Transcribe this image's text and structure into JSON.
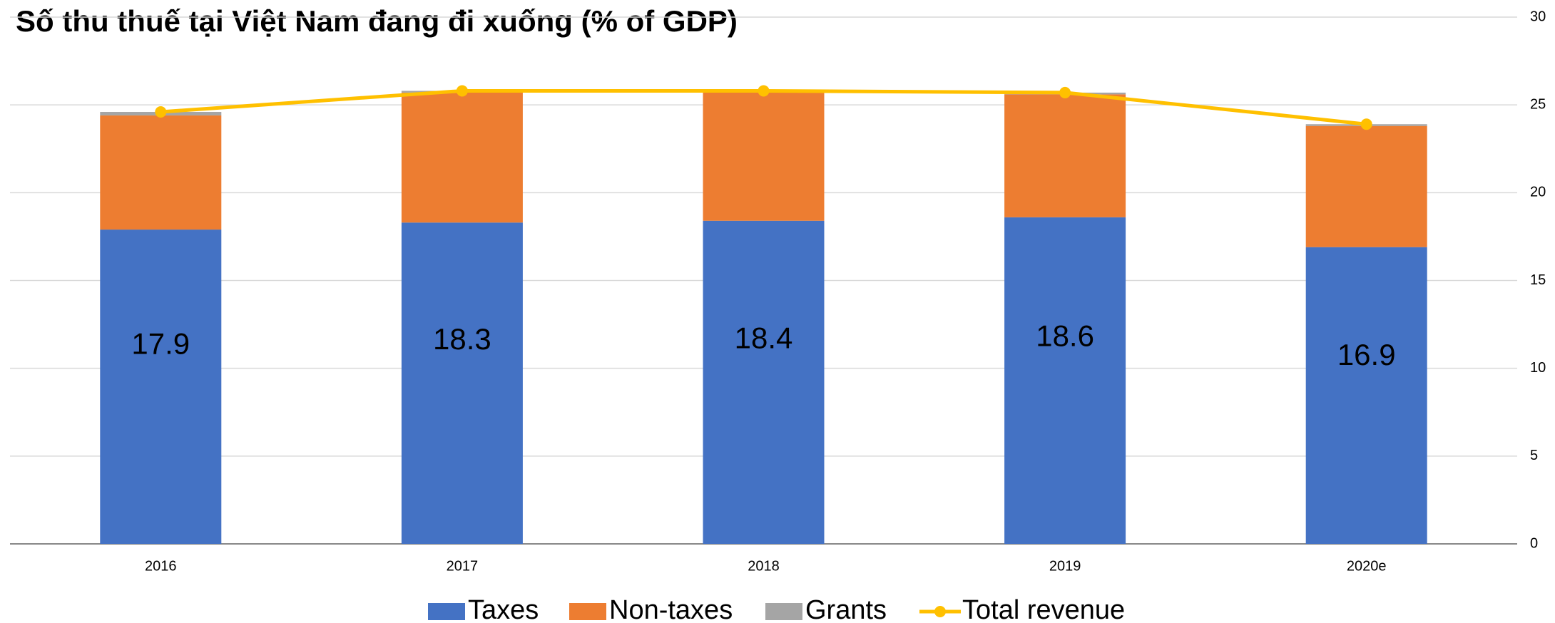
{
  "chart_data": {
    "type": "bar",
    "title": "Số thu thuế tại Việt Nam đang đi xuống (% of GDP)",
    "categories": [
      "2016",
      "2017",
      "2018",
      "2019",
      "2020e"
    ],
    "series": [
      {
        "name": "Taxes",
        "color": "#4472c4",
        "values": [
          17.9,
          18.3,
          18.4,
          18.6,
          16.9
        ]
      },
      {
        "name": "Non-taxes",
        "color": "#ed7d31",
        "values": [
          6.5,
          7.4,
          7.3,
          7.0,
          6.9
        ]
      },
      {
        "name": "Grants",
        "color": "#a5a5a5",
        "values": [
          0.2,
          0.1,
          0.1,
          0.1,
          0.1
        ]
      },
      {
        "name": "Total revenue",
        "color": "#ffc000",
        "type": "line",
        "values": [
          24.6,
          25.8,
          25.8,
          25.7,
          23.9
        ]
      }
    ],
    "ylim": [
      0,
      30
    ],
    "yticks": [
      0,
      5,
      10,
      15,
      20,
      25,
      30
    ],
    "grid": true,
    "legend": "bottom"
  }
}
